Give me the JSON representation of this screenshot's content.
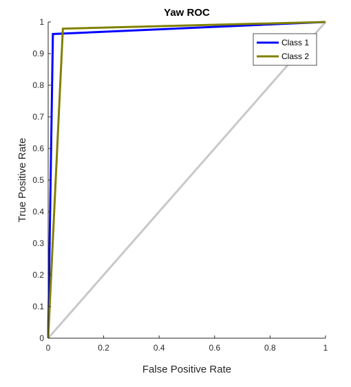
{
  "chart_data": {
    "type": "line",
    "title": "Yaw ROC",
    "xlabel": "False Positive Rate",
    "ylabel": "True Positive Rate",
    "xlim": [
      0,
      1
    ],
    "ylim": [
      0,
      1
    ],
    "xticks": [
      0,
      0.2,
      0.4,
      0.6,
      0.8,
      1
    ],
    "yticks": [
      0,
      0.1,
      0.2,
      0.3,
      0.4,
      0.5,
      0.6,
      0.7,
      0.8,
      0.9,
      1
    ],
    "xtick_labels": [
      "0",
      "0.2",
      "0.4",
      "0.6",
      "0.8",
      "1"
    ],
    "ytick_labels": [
      "0",
      "0.1",
      "0.2",
      "0.3",
      "0.4",
      "0.5",
      "0.6",
      "0.7",
      "0.8",
      "0.9",
      "1"
    ],
    "grid": false,
    "legend_position": "top-right",
    "series": [
      {
        "name": "Class 1",
        "color": "#0000ff",
        "x": [
          0,
          0.017,
          1
        ],
        "y": [
          0,
          0.962,
          1
        ]
      },
      {
        "name": "Class 2",
        "color": "#808000",
        "x": [
          0,
          0.053,
          1
        ],
        "y": [
          0,
          0.979,
          1
        ]
      }
    ],
    "reference_line": {
      "color": "#c8c8c8",
      "x": [
        0,
        1
      ],
      "y": [
        0,
        1
      ]
    }
  }
}
